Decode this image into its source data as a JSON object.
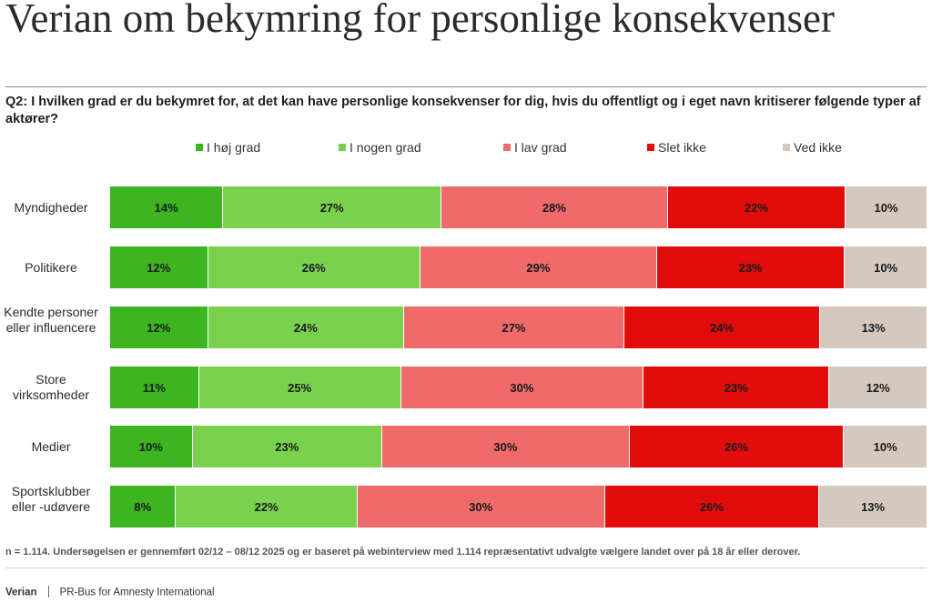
{
  "title": "Verian om bekymring for personlige konsekvenser",
  "question": "Q2: I hvilken grad er du bekymret for, at det kan have personlige konsekvenser for dig, hvis du offentligt og i eget navn kritiserer følgende typer af aktører?",
  "footnote": "n = 1.114. Undersøgelsen er gennemført 02/12 – 08/12 2025 og er baseret på webinterview med 1.114 repræsentativt udvalgte vælgere landet over på 18 år eller derover.",
  "footer": {
    "brand": "Verian",
    "text": "PR-Bus for Amnesty International"
  },
  "chart_data": {
    "type": "bar",
    "orientation": "horizontal",
    "stacked": true,
    "value_format": "percent",
    "legend_position": "top",
    "categories": [
      "Myndigheder",
      "Politikere",
      "Kendte personer eller influencere",
      "Store virksomheder",
      "Medier",
      "Sportsklubber eller -udøvere"
    ],
    "series": [
      {
        "name": "I høj grad",
        "color": "#3cb521",
        "values": [
          14,
          12,
          12,
          11,
          10,
          8
        ]
      },
      {
        "name": "I nogen grad",
        "color": "#7ad14e",
        "values": [
          27,
          26,
          24,
          25,
          23,
          22
        ]
      },
      {
        "name": "I lav grad",
        "color": "#ee6a6b",
        "values": [
          28,
          29,
          27,
          30,
          30,
          30
        ]
      },
      {
        "name": "Slet ikke",
        "color": "#e10d0d",
        "values": [
          22,
          23,
          24,
          23,
          26,
          26
        ]
      },
      {
        "name": "Ved ikke",
        "color": "#d5c9bf",
        "values": [
          10,
          10,
          13,
          12,
          10,
          13
        ]
      }
    ]
  }
}
